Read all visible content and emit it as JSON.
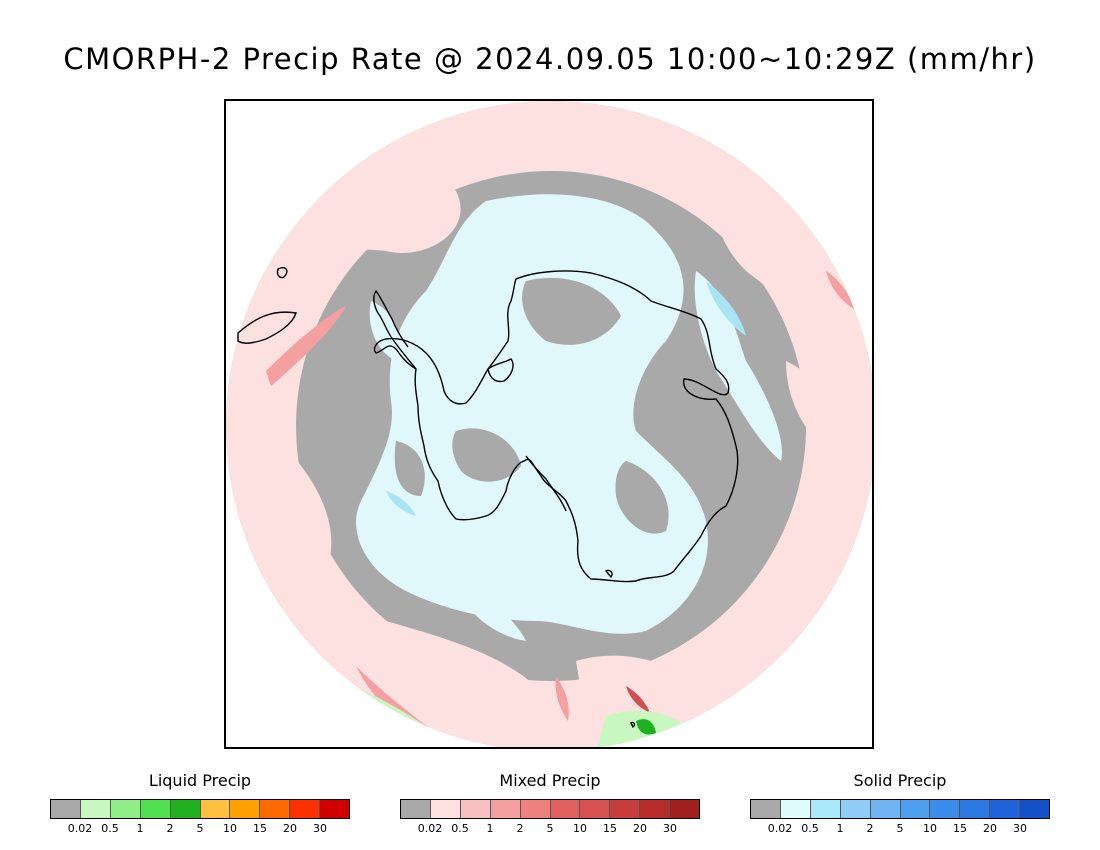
{
  "title": "CMORPH-2 Precip Rate @ 2024.09.05 10:00~10:29Z (mm/hr)",
  "map": {
    "projection": "south-polar-stereographic",
    "colors": {
      "no_precip": "#a9a9a9",
      "mixed_light": "#fde0e0",
      "mixed_mid": "#f4a0a0",
      "mixed_high": "#d05050",
      "solid_light": "#e0f8fc",
      "solid_mid": "#a8e4f4",
      "liquid_light": "#c8f8c0",
      "liquid_high": "#20b020",
      "coastline": "#000000"
    }
  },
  "legends": [
    {
      "title": "Liquid Precip",
      "colors": [
        "#a9a9a9",
        "#c8f8c0",
        "#90ee88",
        "#50e050",
        "#20b020",
        "#ffc040",
        "#ffa000",
        "#ff6a00",
        "#ff3000",
        "#d00000"
      ],
      "ticks": [
        "0.02",
        "0.5",
        "1",
        "2",
        "5",
        "10",
        "15",
        "20",
        "30"
      ]
    },
    {
      "title": "Mixed Precip",
      "colors": [
        "#a9a9a9",
        "#fde0e0",
        "#f8c0c0",
        "#f4a0a0",
        "#ee8080",
        "#e06060",
        "#d85050",
        "#c83c3c",
        "#b82c2c",
        "#a02020"
      ],
      "ticks": [
        "0.02",
        "0.5",
        "1",
        "2",
        "5",
        "10",
        "15",
        "20",
        "30"
      ]
    },
    {
      "title": "Solid Precip",
      "colors": [
        "#a9a9a9",
        "#e0fcfc",
        "#a8e8f8",
        "#90ccf8",
        "#70b4f4",
        "#50a0f0",
        "#3c8cec",
        "#2c78e4",
        "#2064dc",
        "#1450c8"
      ],
      "ticks": [
        "0.02",
        "0.5",
        "1",
        "2",
        "5",
        "10",
        "15",
        "20",
        "30"
      ]
    }
  ]
}
